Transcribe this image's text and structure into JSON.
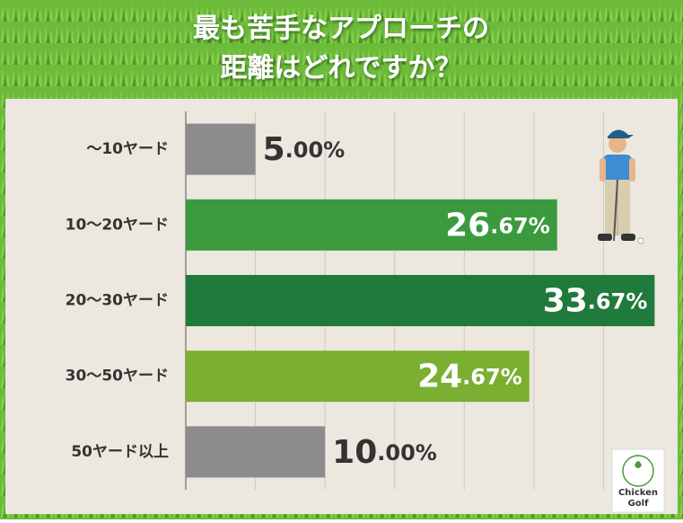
{
  "chart_data": {
    "type": "hbar",
    "title": [
      "最も苦手なアプローチの",
      "距離はどれですか？"
    ],
    "categories": [
      "〜10ヤード",
      "10〜20ヤード",
      "20〜30ヤード",
      "30〜50ヤード",
      "50ヤード以上"
    ],
    "values": [
      5.0,
      26.67,
      33.67,
      24.67,
      10.0
    ],
    "value_labels": [
      "5.00%",
      "26.67%",
      "33.67%",
      "24.67%",
      "10.00%"
    ],
    "colors": [
      "#8c8c8c",
      "#3b9a3e",
      "#1f7a3b",
      "#7baf31",
      "#8c8c8c"
    ],
    "xlim": [
      0,
      35
    ],
    "xticks": [
      0,
      5,
      10,
      15,
      20,
      25,
      30
    ],
    "grid": true
  },
  "logo": [
    "Chicken",
    "Golf"
  ]
}
